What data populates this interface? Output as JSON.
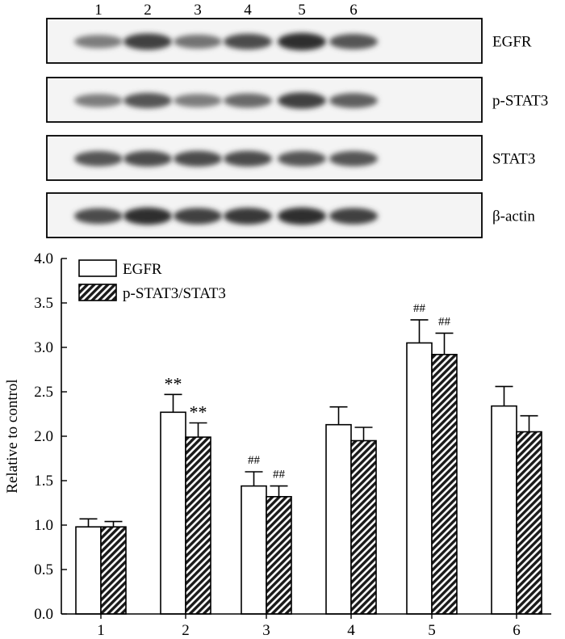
{
  "figure": {
    "lanes": [
      "1",
      "2",
      "3",
      "4",
      "5",
      "6"
    ],
    "blots": [
      {
        "label": "EGFR",
        "band_intensity": [
          0.55,
          0.85,
          0.6,
          0.8,
          0.95,
          0.75
        ]
      },
      {
        "label": "p-STAT3",
        "band_intensity": [
          0.55,
          0.75,
          0.55,
          0.65,
          0.85,
          0.7
        ]
      },
      {
        "label": "STAT3",
        "band_intensity": [
          0.75,
          0.8,
          0.8,
          0.8,
          0.75,
          0.75
        ]
      },
      {
        "label": "β-actin",
        "band_intensity": [
          0.8,
          0.95,
          0.85,
          0.9,
          0.95,
          0.85
        ]
      }
    ]
  },
  "chart_data": {
    "type": "bar",
    "categories": [
      "1",
      "2",
      "3",
      "4",
      "5",
      "6"
    ],
    "ylabel": "Relative to control",
    "xlabel": "",
    "ylim": [
      0.0,
      4.0
    ],
    "yticks": [
      "0.0",
      "0.5",
      "1.0",
      "1.5",
      "2.0",
      "2.5",
      "3.0",
      "3.5",
      "4.0"
    ],
    "legend_position": "top-left",
    "series": [
      {
        "name": "EGFR",
        "fill": "white",
        "values": [
          0.98,
          2.27,
          1.44,
          2.13,
          3.05,
          2.34
        ],
        "errors": [
          0.09,
          0.2,
          0.16,
          0.2,
          0.26,
          0.22
        ],
        "annotations": [
          "",
          "**",
          "##",
          "",
          "##",
          ""
        ]
      },
      {
        "name": "p-STAT3/STAT3",
        "fill": "hatched",
        "values": [
          0.98,
          1.99,
          1.32,
          1.95,
          2.92,
          2.05
        ],
        "errors": [
          0.06,
          0.16,
          0.12,
          0.15,
          0.24,
          0.18
        ],
        "annotations": [
          "",
          "**",
          "##",
          "",
          "##",
          ""
        ]
      }
    ]
  }
}
